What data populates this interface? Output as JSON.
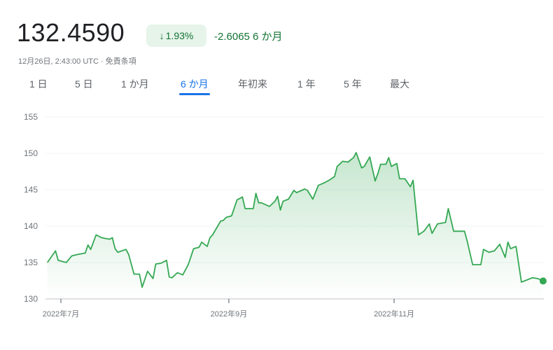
{
  "quote": {
    "price": "132.4590",
    "change_percent": "1.93%",
    "change_direction_icon": "arrow-down-icon",
    "change_abs": "-2.6065",
    "change_period": "6 か月",
    "timestamp": "12月26日, 2:43:00 UTC",
    "separator": "·",
    "disclaimer": "免責条項"
  },
  "tabs": [
    {
      "label": "1 日",
      "active": false
    },
    {
      "label": "5 日",
      "active": false
    },
    {
      "label": "1 か月",
      "active": false
    },
    {
      "label": "6 か月",
      "active": true
    },
    {
      "label": "年初来",
      "active": false
    },
    {
      "label": "1 年",
      "active": false
    },
    {
      "label": "5 年",
      "active": false
    },
    {
      "label": "最大",
      "active": false
    }
  ],
  "colors": {
    "line": "#34a853",
    "accent": "#1a73e8",
    "positive_text": "#137333",
    "badge_bg": "#e6f4ea"
  },
  "chart_data": {
    "type": "area",
    "ylim": [
      130,
      155
    ],
    "y_ticks": [
      "130",
      "135",
      "140",
      "145",
      "150",
      "155"
    ],
    "x_ticks": [
      {
        "date": "2022-07-01",
        "label": "2022年7月"
      },
      {
        "date": "2022-09-01",
        "label": "2022年9月"
      },
      {
        "date": "2022-11-01",
        "label": "2022年11月"
      }
    ],
    "grid": true,
    "points": [
      [
        "2022-06-26",
        135.0
      ],
      [
        "2022-06-29",
        136.6
      ],
      [
        "2022-06-30",
        135.3
      ],
      [
        "2022-07-03",
        135.0
      ],
      [
        "2022-07-05",
        135.9
      ],
      [
        "2022-07-07",
        136.1
      ],
      [
        "2022-07-10",
        136.3
      ],
      [
        "2022-07-11",
        137.4
      ],
      [
        "2022-07-12",
        136.8
      ],
      [
        "2022-07-14",
        138.8
      ],
      [
        "2022-07-16",
        138.4
      ],
      [
        "2022-07-19",
        138.2
      ],
      [
        "2022-07-20",
        138.4
      ],
      [
        "2022-07-21",
        136.9
      ],
      [
        "2022-07-22",
        136.4
      ],
      [
        "2022-07-25",
        136.8
      ],
      [
        "2022-07-26",
        136.1
      ],
      [
        "2022-07-28",
        133.4
      ],
      [
        "2022-07-30",
        133.4
      ],
      [
        "2022-07-31",
        131.6
      ],
      [
        "2022-08-02",
        133.8
      ],
      [
        "2022-08-04",
        132.8
      ],
      [
        "2022-08-05",
        134.8
      ],
      [
        "2022-08-07",
        134.9
      ],
      [
        "2022-08-09",
        135.3
      ],
      [
        "2022-08-10",
        133.0
      ],
      [
        "2022-08-11",
        132.9
      ],
      [
        "2022-08-13",
        133.6
      ],
      [
        "2022-08-15",
        133.3
      ],
      [
        "2022-08-17",
        134.7
      ],
      [
        "2022-08-19",
        136.9
      ],
      [
        "2022-08-21",
        137.1
      ],
      [
        "2022-08-22",
        137.8
      ],
      [
        "2022-08-24",
        137.2
      ],
      [
        "2022-08-25",
        138.4
      ],
      [
        "2022-08-26",
        138.8
      ],
      [
        "2022-08-29",
        140.7
      ],
      [
        "2022-08-30",
        140.8
      ],
      [
        "2022-08-31",
        141.2
      ],
      [
        "2022-09-02",
        141.4
      ],
      [
        "2022-09-04",
        143.6
      ],
      [
        "2022-09-06",
        144.0
      ],
      [
        "2022-09-07",
        142.4
      ],
      [
        "2022-09-10",
        142.4
      ],
      [
        "2022-09-11",
        144.5
      ],
      [
        "2022-09-12",
        143.2
      ],
      [
        "2022-09-13",
        143.2
      ],
      [
        "2022-09-16",
        142.7
      ],
      [
        "2022-09-18",
        143.4
      ],
      [
        "2022-09-19",
        144.1
      ],
      [
        "2022-09-20",
        142.2
      ],
      [
        "2022-09-21",
        143.4
      ],
      [
        "2022-09-23",
        143.7
      ],
      [
        "2022-09-25",
        144.9
      ],
      [
        "2022-09-26",
        144.6
      ],
      [
        "2022-09-29",
        145.1
      ],
      [
        "2022-09-30",
        144.9
      ],
      [
        "2022-10-02",
        143.7
      ],
      [
        "2022-10-04",
        145.6
      ],
      [
        "2022-10-06",
        145.9
      ],
      [
        "2022-10-08",
        146.3
      ],
      [
        "2022-10-10",
        146.8
      ],
      [
        "2022-10-11",
        148.2
      ],
      [
        "2022-10-13",
        148.9
      ],
      [
        "2022-10-15",
        148.8
      ],
      [
        "2022-10-17",
        149.4
      ],
      [
        "2022-10-18",
        150.1
      ],
      [
        "2022-10-20",
        148.0
      ],
      [
        "2022-10-21",
        148.2
      ],
      [
        "2022-10-23",
        149.5
      ],
      [
        "2022-10-25",
        146.2
      ],
      [
        "2022-10-26",
        147.2
      ],
      [
        "2022-10-27",
        148.5
      ],
      [
        "2022-10-29",
        148.5
      ],
      [
        "2022-10-30",
        149.4
      ],
      [
        "2022-10-31",
        148.2
      ],
      [
        "2022-11-02",
        148.6
      ],
      [
        "2022-11-03",
        146.5
      ],
      [
        "2022-11-05",
        146.5
      ],
      [
        "2022-11-07",
        145.4
      ],
      [
        "2022-11-08",
        146.3
      ],
      [
        "2022-11-10",
        138.8
      ],
      [
        "2022-11-12",
        139.3
      ],
      [
        "2022-11-14",
        140.3
      ],
      [
        "2022-11-15",
        139.0
      ],
      [
        "2022-11-17",
        140.3
      ],
      [
        "2022-11-20",
        140.5
      ],
      [
        "2022-11-21",
        142.4
      ],
      [
        "2022-11-23",
        139.3
      ],
      [
        "2022-11-25",
        139.3
      ],
      [
        "2022-11-27",
        139.3
      ],
      [
        "2022-11-28",
        137.9
      ],
      [
        "2022-11-30",
        134.7
      ],
      [
        "2022-12-03",
        134.7
      ],
      [
        "2022-12-04",
        136.8
      ],
      [
        "2022-12-06",
        136.4
      ],
      [
        "2022-12-08",
        136.6
      ],
      [
        "2022-12-10",
        137.5
      ],
      [
        "2022-12-12",
        135.7
      ],
      [
        "2022-12-13",
        137.8
      ],
      [
        "2022-12-14",
        136.9
      ],
      [
        "2022-12-16",
        137.2
      ],
      [
        "2022-12-18",
        132.3
      ],
      [
        "2022-12-20",
        132.6
      ],
      [
        "2022-12-22",
        132.9
      ],
      [
        "2022-12-24",
        132.8
      ],
      [
        "2022-12-26",
        132.459
      ]
    ]
  }
}
